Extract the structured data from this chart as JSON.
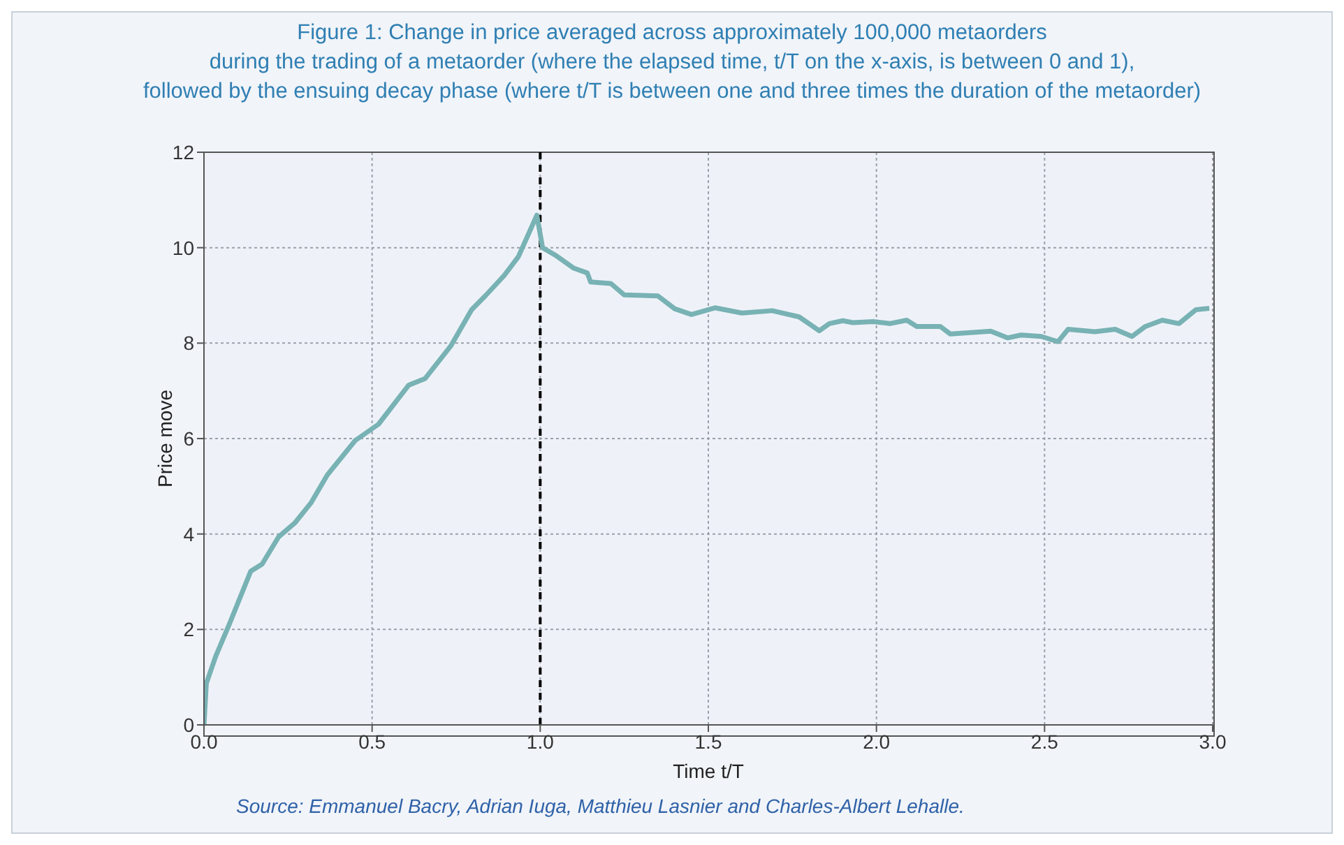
{
  "chart_data": {
    "type": "line",
    "title": "Figure 1: Change in price averaged across approximately 100,000 metaorders\nduring the trading of a metaorder (where the elapsed time, t/T on the x-axis, is between 0 and 1),\nfollowed by the ensuing decay phase (where t/T is between one and three times the duration of the metaorder)",
    "xlabel": "Time t/T",
    "ylabel": "Price move",
    "annotations": [
      "Source: Emmanuel Bacry, Adrian Iuga, Matthieu Lasnier and Charles-Albert Lehalle."
    ],
    "series": [
      {
        "color": "#78b2b4",
        "x": [
          0,
          0.007,
          0.035,
          0.076,
          0.139,
          0.173,
          0.222,
          0.27,
          0.319,
          0.367,
          0.45,
          0.519,
          0.609,
          0.658,
          0.734,
          0.796,
          0.838,
          0.893,
          0.935,
          0.99,
          1.007,
          1.048,
          1.1,
          1.14,
          1.15,
          1.21,
          1.25,
          1.35,
          1.4,
          1.45,
          1.52,
          1.6,
          1.69,
          1.77,
          1.83,
          1.86,
          1.9,
          1.93,
          1.99,
          2.04,
          2.09,
          2.12,
          2.19,
          2.22,
          2.28,
          2.34,
          2.39,
          2.43,
          2.49,
          2.54,
          2.57,
          2.65,
          2.71,
          2.76,
          2.8,
          2.85,
          2.9,
          2.95,
          2.99
        ],
        "values": [
          0,
          0.87,
          1.44,
          2.12,
          3.22,
          3.37,
          3.94,
          4.23,
          4.66,
          5.24,
          5.96,
          6.3,
          7.12,
          7.26,
          7.94,
          8.7,
          9.0,
          9.42,
          9.81,
          10.68,
          10.0,
          9.83,
          9.57,
          9.47,
          9.28,
          9.25,
          9.01,
          8.99,
          8.72,
          8.6,
          8.74,
          8.63,
          8.68,
          8.55,
          8.26,
          8.41,
          8.47,
          8.43,
          8.45,
          8.41,
          8.48,
          8.35,
          8.35,
          8.19,
          8.22,
          8.25,
          8.11,
          8.17,
          8.14,
          8.03,
          8.29,
          8.24,
          8.29,
          8.14,
          8.35,
          8.48,
          8.41,
          8.7,
          8.73
        ]
      }
    ],
    "xlim": [
      0,
      3
    ],
    "xticks": [
      {
        "value": 0,
        "label": "0.0"
      },
      0.5,
      {
        "value": 1,
        "label": "1.0"
      },
      1.5,
      {
        "value": 2,
        "label": "2.0"
      },
      2.5,
      {
        "value": 3,
        "label": "3.0"
      }
    ],
    "ylim": [
      0,
      12
    ],
    "yticks": [
      0,
      2,
      4,
      6,
      8,
      10,
      12
    ],
    "grid": true,
    "legend": false,
    "marker": "none",
    "line_style": "solid",
    "ref_lines": [
      {
        "axis": "x",
        "value": 1,
        "color": "#000000",
        "line_style": "dashed"
      }
    ]
  }
}
